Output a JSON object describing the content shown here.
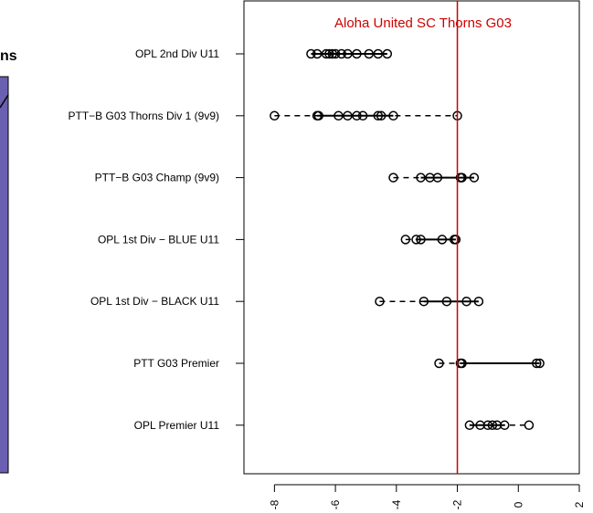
{
  "left_fragment": {
    "title_fragment": "ns",
    "panel_color": "#6a5fb0",
    "panel_border": "#000000"
  },
  "chart_data": {
    "type": "dotplot",
    "reference_label": "Aloha United SC Thorns G03",
    "reference_value": -2,
    "reference_color": "#cc0000",
    "xlim": [
      -9,
      2
    ],
    "x_ticks": [
      -8,
      -6,
      -4,
      -2,
      0,
      2
    ],
    "x_tick_labels": [
      "-8",
      "-6",
      "-4",
      "-2",
      "0",
      "2"
    ],
    "categories": [
      {
        "label": "OPL 2nd Div U11",
        "points": [
          -6.8,
          -6.6,
          -6.3,
          -6.2,
          -6.1,
          -6.0,
          -5.8,
          -5.6,
          -5.3,
          -4.9,
          -4.6,
          -4.3
        ],
        "solid": [
          -6.8,
          -4.3
        ],
        "dashed": null
      },
      {
        "label": "PTT−B G03 Thorns Div 1 (9v9)",
        "points": [
          -8.0,
          -6.6,
          -6.55,
          -5.9,
          -5.6,
          -5.3,
          -5.1,
          -4.6,
          -4.5,
          -4.1,
          -2.0
        ],
        "solid": [
          -6.6,
          -4.1
        ],
        "dashed": [
          -8.0,
          -2.0
        ]
      },
      {
        "label": "PTT−B G03 Champ (9v9)",
        "points": [
          -4.1,
          -3.2,
          -2.9,
          -2.65,
          -1.9,
          -1.85,
          -1.45
        ],
        "solid": [
          -3.2,
          -1.45
        ],
        "dashed": [
          -4.1,
          -1.45
        ]
      },
      {
        "label": "OPL 1st Div − BLUE U11",
        "points": [
          -3.7,
          -3.35,
          -3.2,
          -2.5,
          -2.1,
          -2.05
        ],
        "solid": [
          -3.35,
          -2.05
        ],
        "dashed": [
          -3.7,
          -2.05
        ]
      },
      {
        "label": "OPL 1st Div − BLACK U11",
        "points": [
          -4.55,
          -3.1,
          -2.35,
          -1.7,
          -1.3
        ],
        "solid": [
          -3.1,
          -1.3
        ],
        "dashed": [
          -4.55,
          -1.3
        ]
      },
      {
        "label": "PTT G03 Premier",
        "points": [
          -2.6,
          -1.9,
          -1.85,
          0.6,
          0.7
        ],
        "solid": [
          -1.9,
          0.7
        ],
        "dashed": [
          -2.6,
          -1.9
        ]
      },
      {
        "label": "OPL Premier U11",
        "points": [
          -1.6,
          -1.25,
          -1.0,
          -0.85,
          -0.7,
          -0.45,
          0.35
        ],
        "solid": [
          -1.6,
          -0.45
        ],
        "dashed": [
          -1.6,
          0.35
        ]
      }
    ]
  }
}
